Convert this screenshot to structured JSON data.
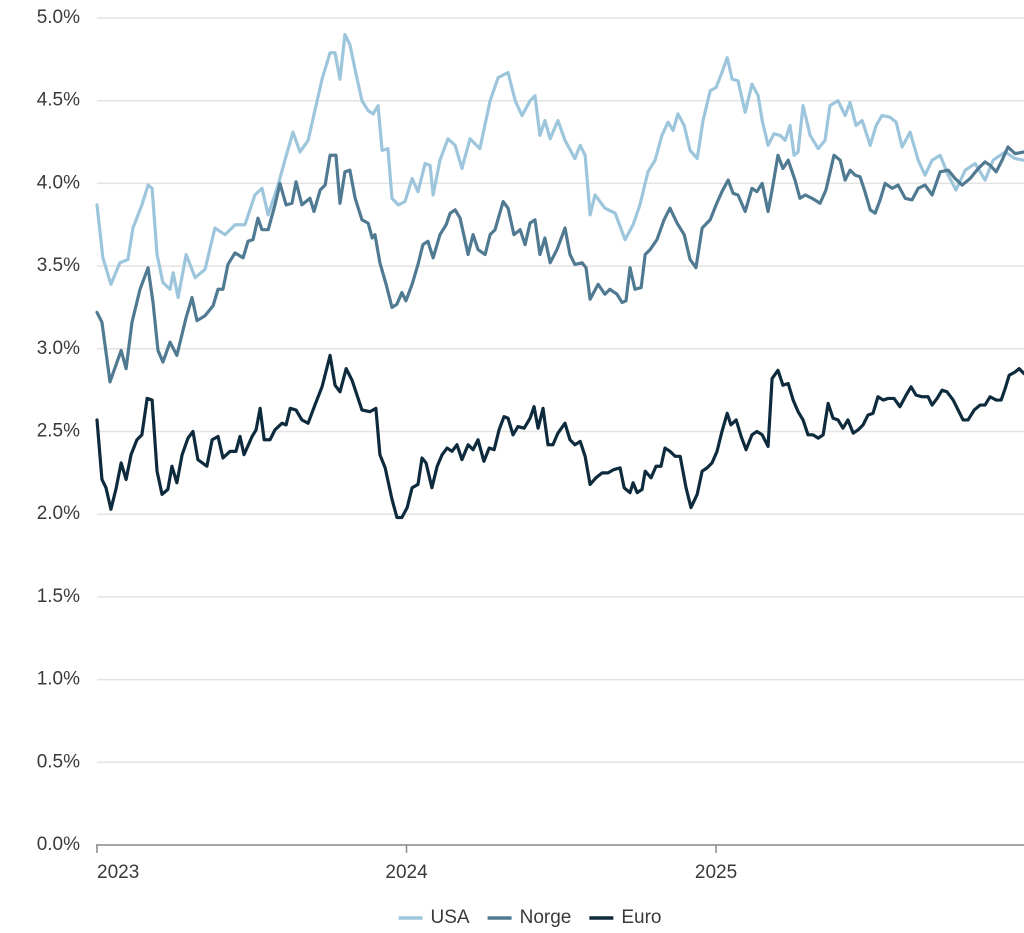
{
  "chart_data": {
    "type": "line",
    "ylim": [
      0,
      5
    ],
    "yticks": [
      {
        "value": 0,
        "label": "0.0%"
      },
      {
        "value": 0.5,
        "label": "0.5%"
      },
      {
        "value": 1,
        "label": "1.0%"
      },
      {
        "value": 1.5,
        "label": "1.5%"
      },
      {
        "value": 2,
        "label": "2.0%"
      },
      {
        "value": 2.5,
        "label": "2.5%"
      },
      {
        "value": 3,
        "label": "3.0%"
      },
      {
        "value": 3.5,
        "label": "3.5%"
      },
      {
        "value": 4,
        "label": "4.0%"
      },
      {
        "value": 4.5,
        "label": "4.5%"
      },
      {
        "value": 5,
        "label": "5.0%"
      }
    ],
    "xlim": [
      2023,
      2026
    ],
    "xticks": [
      2023,
      2024,
      2025
    ],
    "grid": true,
    "legend": "bottom",
    "series": [
      {
        "name": "USA",
        "color": "#9dc6dd",
        "x": [
          2023.0,
          2023.019,
          2023.045,
          2023.074,
          2023.1,
          2023.116,
          2023.145,
          2023.165,
          2023.178,
          2023.194,
          2023.213,
          2023.236,
          2023.246,
          2023.262,
          2023.288,
          2023.317,
          2023.349,
          2023.381,
          2023.414,
          2023.446,
          2023.478,
          2023.51,
          2023.533,
          2023.553,
          2023.585,
          2023.607,
          2023.633,
          2023.656,
          2023.682,
          2023.704,
          2023.727,
          2023.753,
          2023.769,
          2023.785,
          2023.801,
          2023.817,
          2023.837,
          2023.856,
          2023.876,
          2023.892,
          2023.908,
          2023.921,
          2023.94,
          2023.953,
          2023.973,
          2023.995,
          2024.018,
          2024.037,
          2024.06,
          2024.076,
          2024.086,
          2024.108,
          2024.134,
          2024.157,
          2024.179,
          2024.205,
          2024.237,
          2024.27,
          2024.296,
          2024.328,
          2024.351,
          2024.373,
          2024.399,
          2024.415,
          2024.431,
          2024.447,
          2024.464,
          2024.489,
          2024.512,
          2024.544,
          2024.561,
          2024.577,
          2024.593,
          2024.609,
          2024.641,
          2024.674,
          2024.706,
          2024.732,
          2024.754,
          2024.78,
          2024.803,
          2024.825,
          2024.845,
          2024.861,
          2024.877,
          2024.897,
          2024.916,
          2024.939,
          2024.958,
          2024.981,
          2025.0,
          2025.019,
          2025.036,
          2025.052,
          2025.071,
          2025.094,
          2025.116,
          2025.136,
          2025.149,
          2025.168,
          2025.187,
          2025.207,
          2025.223,
          2025.239,
          2025.252,
          2025.265,
          2025.281,
          2025.304,
          2025.33,
          2025.352,
          2025.368,
          2025.394,
          2025.417,
          2025.433,
          2025.452,
          2025.472,
          2025.498,
          2025.517,
          2025.536,
          2025.562,
          2025.582,
          2025.601,
          2025.627,
          2025.653,
          2025.675,
          2025.698,
          2025.724,
          2025.75,
          2025.775,
          2025.805,
          2025.837,
          2025.869,
          2025.895,
          2025.934,
          2025.966,
          2025.995
        ],
        "values": [
          3.87,
          3.55,
          3.39,
          3.52,
          3.54,
          3.73,
          3.87,
          3.99,
          3.97,
          3.57,
          3.4,
          3.36,
          3.46,
          3.31,
          3.57,
          3.43,
          3.48,
          3.73,
          3.69,
          3.75,
          3.75,
          3.93,
          3.97,
          3.81,
          3.99,
          4.14,
          4.31,
          4.19,
          4.26,
          4.44,
          4.63,
          4.79,
          4.79,
          4.63,
          4.9,
          4.84,
          4.66,
          4.5,
          4.44,
          4.42,
          4.47,
          4.2,
          4.21,
          3.91,
          3.87,
          3.89,
          4.03,
          3.95,
          4.12,
          4.11,
          3.93,
          4.14,
          4.27,
          4.23,
          4.09,
          4.27,
          4.21,
          4.5,
          4.64,
          4.67,
          4.5,
          4.41,
          4.5,
          4.53,
          4.29,
          4.38,
          4.27,
          4.38,
          4.26,
          4.15,
          4.23,
          4.17,
          3.81,
          3.93,
          3.85,
          3.82,
          3.66,
          3.75,
          3.87,
          4.07,
          4.14,
          4.29,
          4.37,
          4.32,
          4.42,
          4.35,
          4.2,
          4.15,
          4.38,
          4.56,
          4.58,
          4.67,
          4.76,
          4.63,
          4.62,
          4.43,
          4.6,
          4.53,
          4.38,
          4.23,
          4.3,
          4.29,
          4.26,
          4.35,
          4.17,
          4.19,
          4.47,
          4.29,
          4.21,
          4.26,
          4.47,
          4.5,
          4.41,
          4.49,
          4.35,
          4.38,
          4.23,
          4.35,
          4.41,
          4.4,
          4.37,
          4.22,
          4.31,
          4.14,
          4.05,
          4.14,
          4.17,
          4.05,
          3.96,
          4.08,
          4.12,
          4.02,
          4.14,
          4.19,
          4.15,
          4.14
        ]
      },
      {
        "name": "Norge",
        "color": "#507a92",
        "x": [
          2023.0,
          2023.016,
          2023.042,
          2023.078,
          2023.094,
          2023.113,
          2023.139,
          2023.165,
          2023.181,
          2023.197,
          2023.213,
          2023.236,
          2023.258,
          2023.288,
          2023.307,
          2023.323,
          2023.349,
          2023.375,
          2023.391,
          2023.407,
          2023.423,
          2023.446,
          2023.472,
          2023.488,
          2023.504,
          2023.52,
          2023.533,
          2023.553,
          2023.575,
          2023.591,
          2023.611,
          2023.63,
          2023.643,
          2023.662,
          2023.688,
          2023.701,
          2023.721,
          2023.737,
          2023.753,
          2023.772,
          2023.785,
          2023.801,
          2023.817,
          2023.834,
          2023.856,
          2023.876,
          2023.889,
          2023.898,
          2023.914,
          2023.934,
          2023.953,
          2023.969,
          2023.985,
          2023.998,
          2024.018,
          2024.037,
          2024.053,
          2024.069,
          2024.086,
          2024.108,
          2024.128,
          2024.141,
          2024.157,
          2024.173,
          2024.199,
          2024.215,
          2024.231,
          2024.254,
          2024.27,
          2024.286,
          2024.312,
          2024.328,
          2024.347,
          2024.367,
          2024.383,
          2024.399,
          2024.415,
          2024.431,
          2024.447,
          2024.464,
          2024.486,
          2024.512,
          2024.528,
          2024.544,
          2024.567,
          2024.58,
          2024.593,
          2024.619,
          2024.641,
          2024.657,
          2024.68,
          2024.696,
          2024.709,
          2024.722,
          2024.738,
          2024.758,
          2024.771,
          2024.787,
          2024.809,
          2024.832,
          2024.851,
          2024.874,
          2024.897,
          2024.916,
          2024.935,
          2024.955,
          2024.981,
          2025.0,
          2025.019,
          2025.039,
          2025.055,
          2025.071,
          2025.094,
          2025.116,
          2025.132,
          2025.149,
          2025.168,
          2025.181,
          2025.2,
          2025.216,
          2025.233,
          2025.255,
          2025.271,
          2025.288,
          2025.31,
          2025.336,
          2025.355,
          2025.381,
          2025.401,
          2025.417,
          2025.433,
          2025.449,
          2025.465,
          2025.481,
          2025.498,
          2025.514,
          2025.53,
          2025.546,
          2025.569,
          2025.588,
          2025.611,
          2025.633,
          2025.653,
          2025.675,
          2025.698,
          2025.724,
          2025.75,
          2025.772,
          2025.795,
          2025.821,
          2025.847,
          2025.869,
          2025.885,
          2025.905,
          2025.924,
          2025.943,
          2025.966,
          2025.995
        ],
        "values": [
          3.22,
          3.16,
          2.8,
          2.99,
          2.88,
          3.16,
          3.36,
          3.49,
          3.28,
          2.99,
          2.92,
          3.04,
          2.96,
          3.19,
          3.31,
          3.17,
          3.2,
          3.26,
          3.36,
          3.36,
          3.51,
          3.58,
          3.55,
          3.65,
          3.66,
          3.79,
          3.72,
          3.72,
          3.87,
          4.0,
          3.87,
          3.88,
          4.01,
          3.87,
          3.91,
          3.83,
          3.96,
          3.99,
          4.17,
          4.17,
          3.88,
          4.07,
          4.08,
          3.91,
          3.78,
          3.76,
          3.67,
          3.69,
          3.52,
          3.39,
          3.25,
          3.27,
          3.34,
          3.29,
          3.39,
          3.51,
          3.63,
          3.65,
          3.55,
          3.69,
          3.75,
          3.82,
          3.84,
          3.79,
          3.57,
          3.69,
          3.6,
          3.57,
          3.69,
          3.72,
          3.89,
          3.85,
          3.69,
          3.72,
          3.63,
          3.76,
          3.78,
          3.57,
          3.67,
          3.52,
          3.6,
          3.73,
          3.57,
          3.51,
          3.52,
          3.49,
          3.3,
          3.39,
          3.33,
          3.36,
          3.33,
          3.28,
          3.29,
          3.49,
          3.36,
          3.37,
          3.57,
          3.6,
          3.66,
          3.78,
          3.85,
          3.76,
          3.69,
          3.54,
          3.49,
          3.73,
          3.78,
          3.87,
          3.95,
          4.02,
          3.94,
          3.93,
          3.83,
          3.97,
          3.95,
          4.0,
          3.83,
          3.96,
          4.17,
          4.09,
          4.14,
          4.02,
          3.91,
          3.93,
          3.91,
          3.88,
          3.96,
          4.17,
          4.14,
          4.02,
          4.08,
          4.05,
          4.04,
          3.95,
          3.84,
          3.82,
          3.9,
          4.0,
          3.97,
          3.99,
          3.91,
          3.9,
          3.97,
          3.99,
          3.93,
          4.07,
          4.08,
          4.03,
          3.99,
          4.03,
          4.09,
          4.13,
          4.11,
          4.07,
          4.14,
          4.22,
          4.18,
          4.19
        ]
      },
      {
        "name": "Euro",
        "color": "#0e2b3d",
        "x": [
          2023.0,
          2023.016,
          2023.029,
          2023.045,
          2023.061,
          2023.078,
          2023.094,
          2023.11,
          2023.129,
          2023.145,
          2023.162,
          2023.178,
          2023.194,
          2023.21,
          2023.229,
          2023.242,
          2023.258,
          2023.275,
          2023.294,
          2023.31,
          2023.326,
          2023.355,
          2023.372,
          2023.391,
          2023.407,
          2023.43,
          2023.449,
          2023.462,
          2023.475,
          2023.501,
          2023.514,
          2023.527,
          2023.54,
          2023.559,
          2023.575,
          2023.598,
          2023.611,
          2023.624,
          2023.643,
          2023.662,
          2023.682,
          2023.704,
          2023.727,
          2023.753,
          2023.769,
          2023.785,
          2023.805,
          2023.824,
          2023.84,
          2023.856,
          2023.882,
          2023.901,
          2023.914,
          2023.931,
          2023.953,
          2023.969,
          2023.985,
          2024.002,
          2024.018,
          2024.037,
          2024.05,
          2024.063,
          2024.082,
          2024.099,
          2024.115,
          2024.131,
          2024.147,
          2024.163,
          2024.179,
          2024.199,
          2024.215,
          2024.231,
          2024.25,
          2024.267,
          2024.283,
          2024.299,
          2024.315,
          2024.328,
          2024.344,
          2024.36,
          2024.38,
          2024.399,
          2024.412,
          2024.425,
          2024.441,
          2024.457,
          2024.473,
          2024.489,
          2024.512,
          2024.528,
          2024.544,
          2024.561,
          2024.577,
          2024.593,
          2024.612,
          2024.632,
          2024.651,
          2024.67,
          2024.69,
          2024.703,
          2024.722,
          2024.732,
          2024.745,
          2024.761,
          2024.771,
          2024.79,
          2024.806,
          2024.822,
          2024.835,
          2024.851,
          2024.868,
          2024.884,
          2024.903,
          2024.919,
          2024.939,
          2024.955,
          2024.971,
          2024.987,
          2025.003,
          2025.019,
          2025.036,
          2025.048,
          2025.065,
          2025.081,
          2025.097,
          2025.116,
          2025.132,
          2025.149,
          2025.168,
          2025.181,
          2025.2,
          2025.216,
          2025.233,
          2025.249,
          2025.265,
          2025.281,
          2025.297,
          2025.313,
          2025.33,
          2025.346,
          2025.362,
          2025.378,
          2025.394,
          2025.41,
          2025.426,
          2025.443,
          2025.459,
          2025.475,
          2025.491,
          2025.507,
          2025.523,
          2025.54,
          2025.556,
          2025.575,
          2025.594,
          2025.614,
          2025.63,
          2025.646,
          2025.666,
          2025.685,
          2025.698,
          2025.714,
          2025.73,
          2025.746,
          2025.766,
          2025.782,
          2025.798,
          2025.814,
          2025.834,
          2025.853,
          2025.869,
          2025.885,
          2025.905,
          2025.921,
          2025.934,
          2025.947,
          2025.966,
          2025.979,
          2025.995
        ],
        "values": [
          2.57,
          2.21,
          2.16,
          2.03,
          2.15,
          2.31,
          2.21,
          2.36,
          2.45,
          2.48,
          2.7,
          2.69,
          2.26,
          2.12,
          2.15,
          2.29,
          2.19,
          2.36,
          2.46,
          2.5,
          2.33,
          2.29,
          2.45,
          2.47,
          2.34,
          2.38,
          2.38,
          2.47,
          2.36,
          2.47,
          2.51,
          2.64,
          2.45,
          2.45,
          2.51,
          2.55,
          2.54,
          2.64,
          2.63,
          2.57,
          2.55,
          2.66,
          2.77,
          2.96,
          2.78,
          2.74,
          2.88,
          2.81,
          2.72,
          2.63,
          2.62,
          2.64,
          2.36,
          2.28,
          2.09,
          1.98,
          1.98,
          2.04,
          2.16,
          2.18,
          2.34,
          2.31,
          2.16,
          2.29,
          2.36,
          2.4,
          2.38,
          2.42,
          2.33,
          2.42,
          2.39,
          2.45,
          2.32,
          2.4,
          2.39,
          2.51,
          2.59,
          2.58,
          2.48,
          2.53,
          2.52,
          2.58,
          2.65,
          2.52,
          2.64,
          2.42,
          2.42,
          2.49,
          2.55,
          2.45,
          2.42,
          2.44,
          2.35,
          2.18,
          2.22,
          2.25,
          2.25,
          2.27,
          2.28,
          2.16,
          2.13,
          2.19,
          2.13,
          2.15,
          2.26,
          2.22,
          2.29,
          2.29,
          2.4,
          2.38,
          2.35,
          2.35,
          2.16,
          2.04,
          2.12,
          2.26,
          2.28,
          2.31,
          2.38,
          2.5,
          2.61,
          2.54,
          2.57,
          2.47,
          2.39,
          2.48,
          2.5,
          2.48,
          2.41,
          2.82,
          2.87,
          2.78,
          2.79,
          2.69,
          2.62,
          2.57,
          2.48,
          2.48,
          2.46,
          2.48,
          2.67,
          2.58,
          2.57,
          2.52,
          2.57,
          2.49,
          2.51,
          2.54,
          2.6,
          2.61,
          2.71,
          2.69,
          2.7,
          2.7,
          2.65,
          2.72,
          2.77,
          2.72,
          2.71,
          2.71,
          2.66,
          2.7,
          2.75,
          2.74,
          2.69,
          2.63,
          2.57,
          2.57,
          2.63,
          2.66,
          2.66,
          2.71,
          2.69,
          2.69,
          2.76,
          2.84,
          2.86,
          2.88,
          2.85
        ]
      }
    ]
  }
}
